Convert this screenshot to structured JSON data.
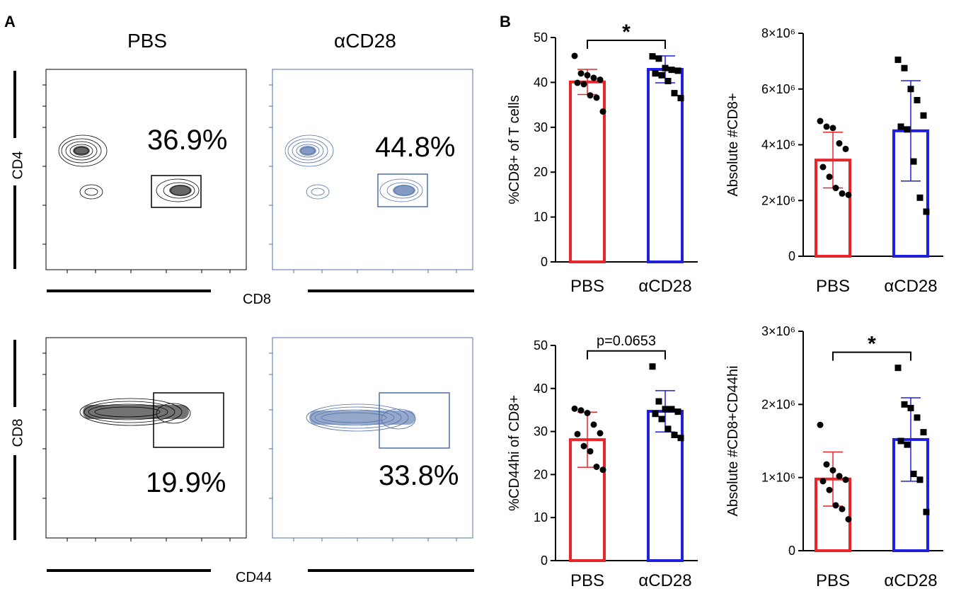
{
  "panel_a": {
    "label": "A",
    "col_heads": [
      "PBS",
      "αCD28"
    ],
    "row1": {
      "y_axis": "CD4",
      "x_axis": "CD8",
      "pcts": [
        "36.9%",
        "44.8%"
      ]
    },
    "row2": {
      "y_axis": "CD8",
      "x_axis": "CD44",
      "pcts": [
        "19.9%",
        "33.8%"
      ]
    }
  },
  "panel_b": {
    "label": "B"
  },
  "colors": {
    "pbs": "#e8262a",
    "acd28": "#1f1fe0",
    "flow_blue": "#4f6fa8",
    "flow_black": "#000000"
  },
  "chart_data": [
    {
      "type": "bar",
      "categories": [
        "PBS",
        "αCD28"
      ],
      "values": [
        40.1,
        42.9
      ],
      "errors": [
        2.8,
        3.0
      ],
      "points": [
        [
          45.9,
          42.0,
          41.6,
          41.0,
          40.6,
          39.9,
          39.6,
          37.1,
          36.6,
          33.5
        ],
        [
          45.8,
          45.3,
          43.2,
          42.8,
          42.6,
          42.0,
          41.6,
          40.3,
          37.6,
          36.5
        ]
      ],
      "ylabel": "%CD8+ of T cells",
      "ylim": [
        0,
        50
      ],
      "yticks": [
        "0",
        "10",
        "20",
        "30",
        "40",
        "50"
      ],
      "significance": "*"
    },
    {
      "type": "bar",
      "categories": [
        "PBS",
        "αCD28"
      ],
      "values": [
        3.45,
        4.5
      ],
      "errors": [
        1.0,
        1.8
      ],
      "points": [
        [
          4.85,
          4.65,
          4.6,
          4.05,
          3.85,
          3.2,
          2.85,
          2.45,
          2.25,
          2.2
        ],
        [
          7.05,
          6.75,
          6.0,
          5.6,
          5.05,
          4.65,
          4.55,
          3.4,
          2.1,
          1.6
        ]
      ],
      "ylabel": "Absolute #CD8+",
      "ylim": [
        0,
        8
      ],
      "yticks": [
        "0",
        "2×10⁶",
        "4×10⁶",
        "6×10⁶",
        "8×10⁶"
      ],
      "significance": ""
    },
    {
      "type": "bar",
      "categories": [
        "PBS",
        "αCD28"
      ],
      "values": [
        28.1,
        34.7
      ],
      "errors": [
        6.4,
        4.8
      ],
      "points": [
        [
          35.3,
          34.9,
          34.3,
          31.6,
          29.6,
          29.4,
          26.6,
          25.4,
          21.8,
          21.1
        ],
        [
          45.1,
          37.0,
          35.2,
          35.2,
          34.6,
          34.1,
          32.9,
          30.6,
          29.2,
          28.5
        ]
      ],
      "ylabel": "%CD44hi of CD8+",
      "ylim": [
        0,
        50
      ],
      "yticks": [
        "0",
        "10",
        "20",
        "30",
        "40",
        "50"
      ],
      "significance": "p=0.0653"
    },
    {
      "type": "bar",
      "categories": [
        "PBS",
        "αCD28"
      ],
      "values": [
        0.98,
        1.52
      ],
      "errors": [
        0.37,
        0.57
      ],
      "points": [
        [
          1.72,
          1.18,
          1.1,
          1.02,
          0.97,
          0.95,
          0.83,
          0.62,
          0.57,
          0.43
        ],
        [
          2.5,
          2.0,
          1.95,
          1.82,
          1.62,
          1.5,
          1.45,
          1.05,
          0.97,
          0.53
        ]
      ],
      "ylabel": "Absolute #CD8+CD44hi",
      "ylim": [
        0,
        3
      ],
      "yticks": [
        "0",
        "1×10⁶",
        "2×10⁶",
        "3×10⁶"
      ],
      "significance": "*"
    }
  ]
}
